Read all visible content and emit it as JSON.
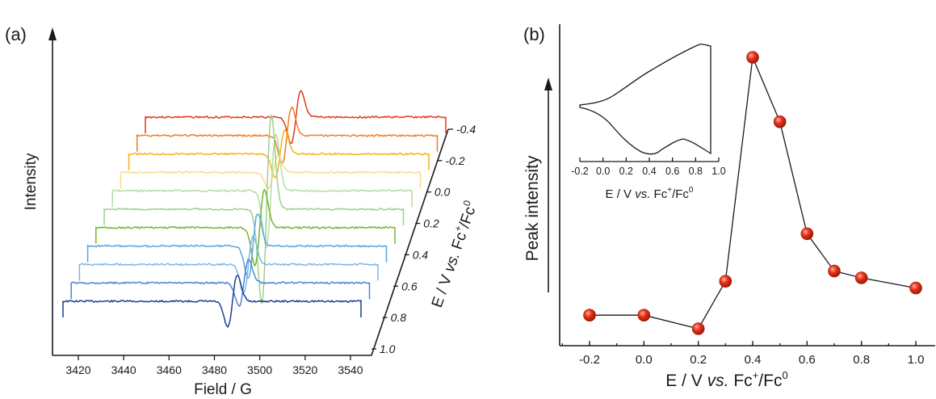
{
  "panel_a": {
    "letter": "(a)",
    "ylabel": "Intensity",
    "xlabel": "Field / G",
    "x_ticks": [
      "3420",
      "3440",
      "3460",
      "3480",
      "3500",
      "3520",
      "3540"
    ],
    "depth_ticks": [
      "-0.4",
      "-0.2",
      "0.0",
      "0.2",
      "0.4",
      "0.6",
      "0.8",
      "1.0"
    ],
    "depth_label_prefix": "E / V",
    "depth_label_vs": "vs.",
    "depth_label_fc": "Fc",
    "depth_label_plus": "+",
    "depth_label_slash": "/Fc",
    "depth_label_zero": "0"
  },
  "panel_b": {
    "letter": "(b)",
    "ylabel": "Peak intensity",
    "xlabel_prefix": "E / V",
    "xlabel_vs": "vs.",
    "xlabel_fc": "Fc",
    "xlabel_plus": "+",
    "xlabel_slash": "/Fc",
    "xlabel_zero": "0",
    "x_ticks": [
      "-0.2",
      "0.0",
      "0.2",
      "0.4",
      "0.6",
      "0.8",
      "1.0"
    ],
    "inset_ticks": [
      "-0.2",
      "0.0",
      "0.2",
      "0.4",
      "0.6",
      "0.8",
      "1.0"
    ]
  },
  "colors": {
    "marker": "#e8321a",
    "marker_highlight": "#ffb39c",
    "axis": "#1a1a1a"
  },
  "chart_data": [
    {
      "type": "line",
      "panel": "a",
      "xlabel": "Field / G",
      "ylabel": "Intensity",
      "xlim": [
        3420,
        3550
      ],
      "depth_axis": "E / V vs. Fc+/Fc0",
      "depth_range": [
        -0.4,
        1.0
      ],
      "series_layers": [
        {
          "potential": -0.4,
          "color": "#e03a1e",
          "center_G": 3516,
          "amplitude": 0.55
        },
        {
          "potential": -0.2,
          "color": "#f07e22",
          "center_G": 3512,
          "amplitude": 0.6
        },
        {
          "potential": -0.1,
          "color": "#f4b21c",
          "center_G": 3509,
          "amplitude": 0.5
        },
        {
          "potential": 0.0,
          "color": "#f6dc8a",
          "center_G": 3506,
          "amplitude": 0.35
        },
        {
          "potential": 0.1,
          "color": "#b7dba4",
          "center_G": 3505,
          "amplitude": 1.2
        },
        {
          "potential": 0.2,
          "color": "#9fd08a",
          "center_G": 3503,
          "amplitude": 2.0
        },
        {
          "potential": 0.3,
          "color": "#6fb82c",
          "center_G": 3500,
          "amplitude": 0.8
        },
        {
          "potential": 0.4,
          "color": "#58a6e0",
          "center_G": 3497,
          "amplitude": 0.7
        },
        {
          "potential": 0.5,
          "color": "#7bb6e8",
          "center_G": 3495,
          "amplitude": 0.6
        },
        {
          "potential": 0.6,
          "color": "#4a86d0",
          "center_G": 3493,
          "amplitude": 0.5
        },
        {
          "potential": 1.0,
          "color": "#1c3f94",
          "center_G": 3488,
          "amplitude": 0.55
        }
      ]
    },
    {
      "type": "scatter",
      "panel": "b",
      "xlabel": "E / V vs. Fc+/Fc0",
      "ylabel": "Peak intensity",
      "xlim": [
        -0.3,
        1.05
      ],
      "ylim": [
        0,
        1
      ],
      "x": [
        -0.2,
        0.0,
        0.2,
        0.3,
        0.4,
        0.5,
        0.6,
        0.7,
        0.8,
        1.0
      ],
      "y": [
        0.09,
        0.09,
        0.05,
        0.19,
        0.85,
        0.66,
        0.33,
        0.22,
        0.2,
        0.17
      ]
    },
    {
      "type": "line",
      "panel": "b-inset",
      "xlabel": "E / V vs. Fc+/Fc0",
      "xlim": [
        -0.2,
        1.0
      ],
      "description_free": true
    }
  ]
}
